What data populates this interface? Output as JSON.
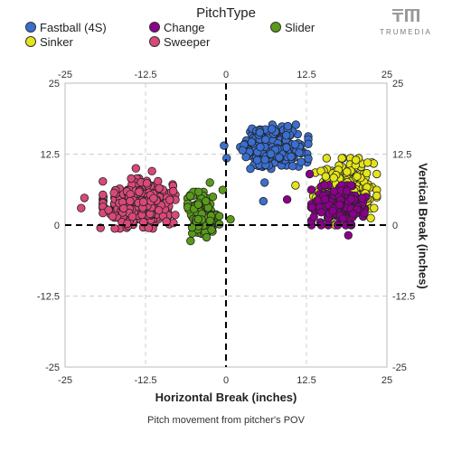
{
  "legend": {
    "title": "PitchType",
    "items": [
      {
        "label": "Fastball (4S)",
        "color": "#3a6fd0"
      },
      {
        "label": "Change",
        "color": "#8b008b"
      },
      {
        "label": "Slider",
        "color": "#5a9a1a"
      },
      {
        "label": "Sinker",
        "color": "#e4e41a"
      },
      {
        "label": "Sweeper",
        "color": "#d9487a"
      }
    ]
  },
  "brand": {
    "text": "TRUMEDIA",
    "icon": "trumedia-logo-icon"
  },
  "caption": "Pitch movement from pitcher's POV",
  "chart_data": {
    "type": "scatter",
    "xlabel": "Horizontal Break (inches)",
    "ylabel": "Vertical Break (inches)",
    "xlim": [
      -25,
      25
    ],
    "ylim": [
      -25,
      25
    ],
    "x_ticks": [
      "-25",
      "-12.5",
      "0",
      "12.5",
      "25"
    ],
    "y_ticks": [
      "25",
      "12.5",
      "0",
      "-12.5",
      "-25"
    ],
    "grid": true,
    "legend_position": "top",
    "series": [
      {
        "name": "Fastball (4S)",
        "color": "#3a6fd0",
        "count": 260,
        "center": [
          7.5,
          13.8
        ],
        "spread": [
          3.0,
          2.2
        ],
        "outliers": [
          [
            -0.3,
            14
          ],
          [
            0.1,
            11.8
          ],
          [
            5.8,
            4.2
          ],
          [
            6,
            7.5
          ]
        ]
      },
      {
        "name": "Sinker",
        "color": "#e4e41a",
        "count": 230,
        "center": [
          18.5,
          6.5
        ],
        "spread": [
          2.8,
          3.0
        ],
        "outliers": [
          [
            10.8,
            7
          ],
          [
            22,
            11
          ],
          [
            17,
            0
          ],
          [
            23,
            3
          ]
        ]
      },
      {
        "name": "Change",
        "color": "#8b008b",
        "count": 190,
        "center": [
          17.5,
          3.5
        ],
        "spread": [
          2.4,
          2.0
        ],
        "outliers": [
          [
            9.5,
            4.5
          ],
          [
            19,
            -1.8
          ],
          [
            13,
            9
          ]
        ]
      },
      {
        "name": "Sweeper",
        "color": "#d9487a",
        "count": 370,
        "center": [
          -13.5,
          3.8
        ],
        "spread": [
          3.2,
          2.5
        ],
        "outliers": [
          [
            -22.5,
            3
          ],
          [
            -14,
            10
          ],
          [
            -19.5,
            -0.5
          ],
          [
            -11.5,
            9.5
          ],
          [
            -22,
            4.8
          ]
        ]
      },
      {
        "name": "Slider",
        "color": "#5a9a1a",
        "count": 150,
        "center": [
          -3.5,
          1.8
        ],
        "spread": [
          1.4,
          2.3
        ],
        "outliers": [
          [
            -5.5,
            -2.8
          ],
          [
            -2.5,
            7.5
          ],
          [
            -0.5,
            6.2
          ],
          [
            0.7,
            1
          ]
        ]
      }
    ]
  }
}
